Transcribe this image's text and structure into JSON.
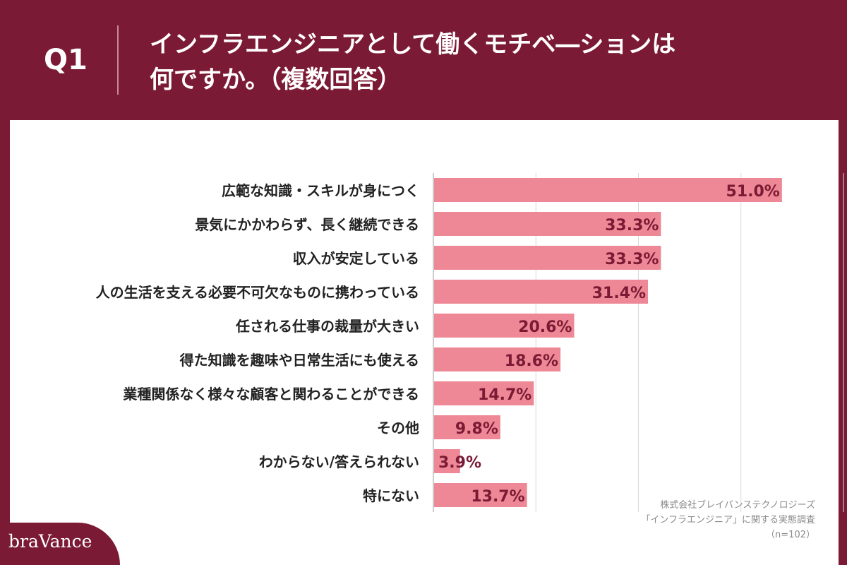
{
  "header": {
    "question_number": "Q1",
    "title_line1": "インフラエンジニアとして働くモチベ―ションは",
    "title_line2": "何ですか。（複数回答）"
  },
  "source": {
    "company": "株式会社ブレイバンステクノロジーズ",
    "survey": "「インフラエンジニア」に関する実態調査",
    "sample": "（n=102）"
  },
  "logo": {
    "text": "braVance"
  },
  "colors": {
    "background": "#7b1a34",
    "bar": "#ee8896",
    "bar_label": "#7b1a34",
    "grid": "#d9d9d9"
  },
  "chart_data": {
    "type": "bar",
    "orientation": "horizontal",
    "categories": [
      "広範な知識・スキルが身につく",
      "景気にかかわらず、長く継続できる",
      "収入が安定している",
      "人の生活を支える必要不可欠なものに携わっている",
      "任される仕事の裁量が大きい",
      "得た知識を趣味や日常生活にも使える",
      "業種関係なく様々な顧客と関わることができる",
      "その他",
      "わからない/答えられない",
      "特にない"
    ],
    "values": [
      51.0,
      33.3,
      33.3,
      31.4,
      20.6,
      18.6,
      14.7,
      9.8,
      3.9,
      13.7
    ],
    "value_labels": [
      "51.0%",
      "33.3%",
      "33.3%",
      "31.4%",
      "20.6%",
      "18.6%",
      "14.7%",
      "9.8%",
      "3.9%",
      "13.7%"
    ],
    "xlim": [
      0,
      60
    ],
    "grid": true,
    "grid_values": [
      0,
      15,
      30,
      45,
      60
    ]
  }
}
